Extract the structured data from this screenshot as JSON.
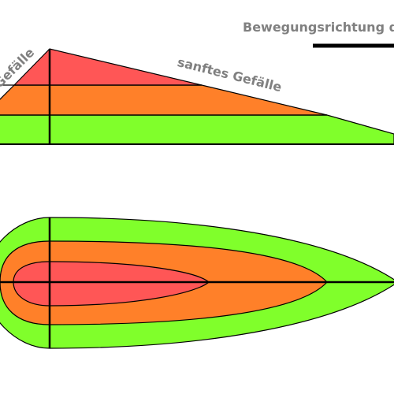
{
  "labels": {
    "direction": "Bewegungsrichtung der",
    "steep_slope": "Gefälle",
    "gentle_slope": "sanftes Gefälle"
  }
}
